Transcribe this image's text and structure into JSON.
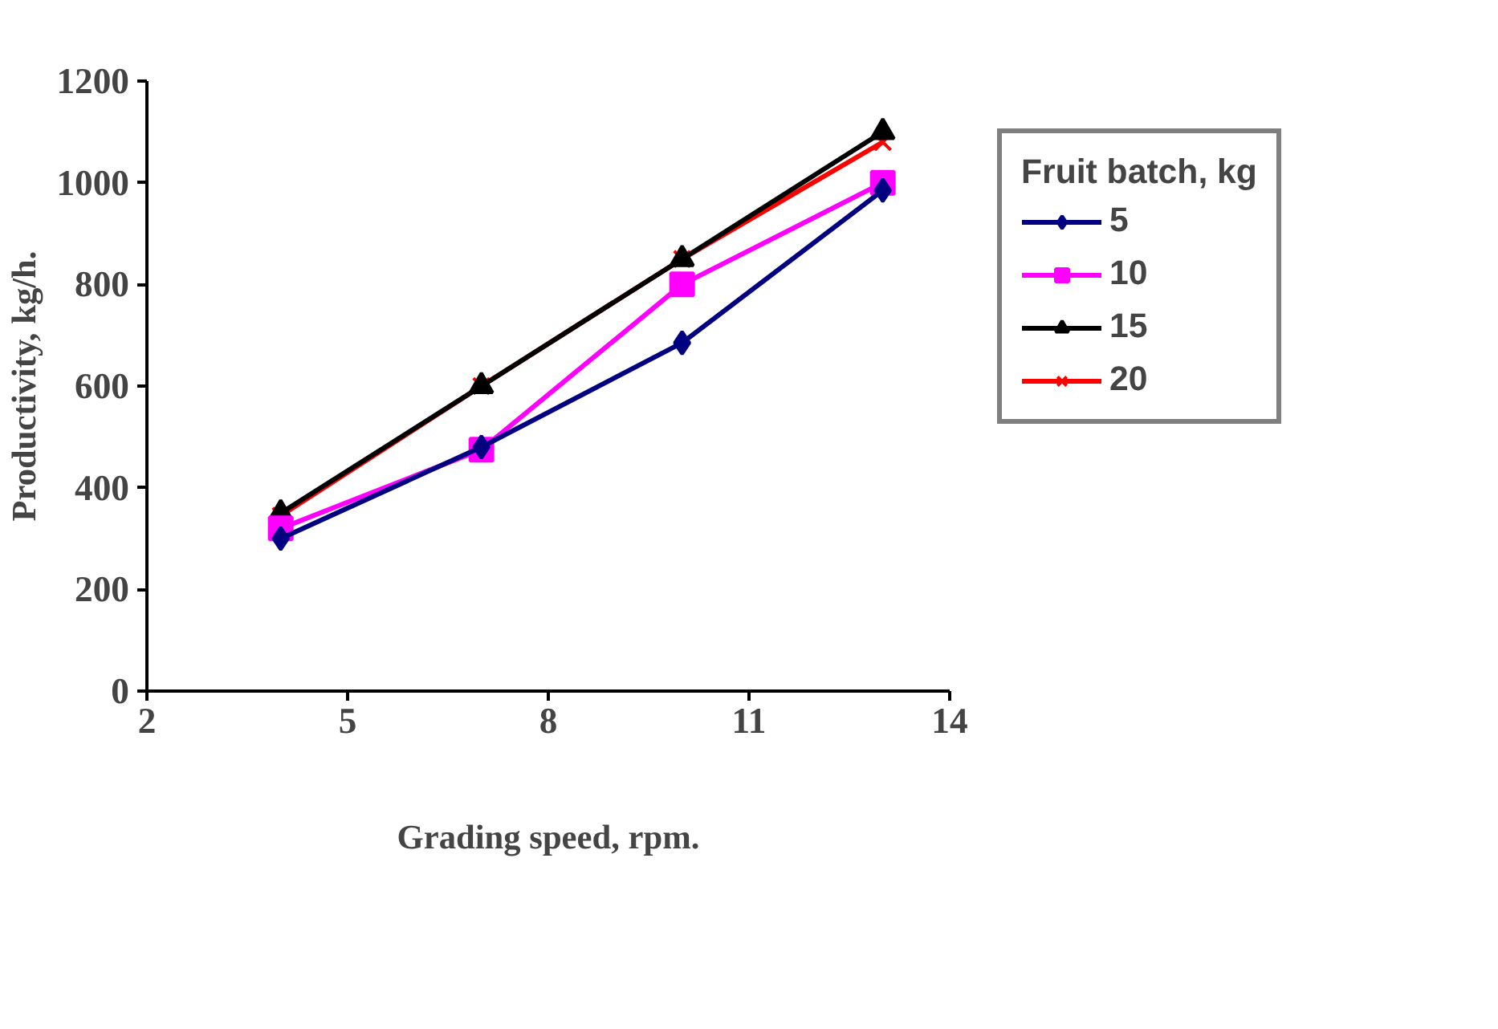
{
  "chart_data": {
    "type": "line",
    "xlabel": "Grading speed, rpm.",
    "ylabel": "Productivity, kg/h.",
    "legend_title": "Fruit batch, kg",
    "legend": "right",
    "grid": false,
    "x": [
      4,
      7,
      10,
      13
    ],
    "xlim": [
      2,
      14
    ],
    "xticks": [
      2,
      5,
      8,
      11,
      14
    ],
    "ylim": [
      0,
      1200
    ],
    "yticks": [
      0,
      200,
      400,
      600,
      800,
      1000,
      1200
    ],
    "series": [
      {
        "name": "5",
        "color": "#000080",
        "marker": "diamond",
        "values": [
          300,
          480,
          685,
          985
        ]
      },
      {
        "name": "10",
        "color": "#ff00ff",
        "marker": "square",
        "values": [
          320,
          475,
          800,
          1000
        ]
      },
      {
        "name": "15",
        "color": "#000000",
        "marker": "triangle",
        "values": [
          350,
          600,
          850,
          1100
        ]
      },
      {
        "name": "20",
        "color": "#ff0000",
        "marker": "cross",
        "values": [
          345,
          600,
          850,
          1080
        ]
      }
    ]
  }
}
